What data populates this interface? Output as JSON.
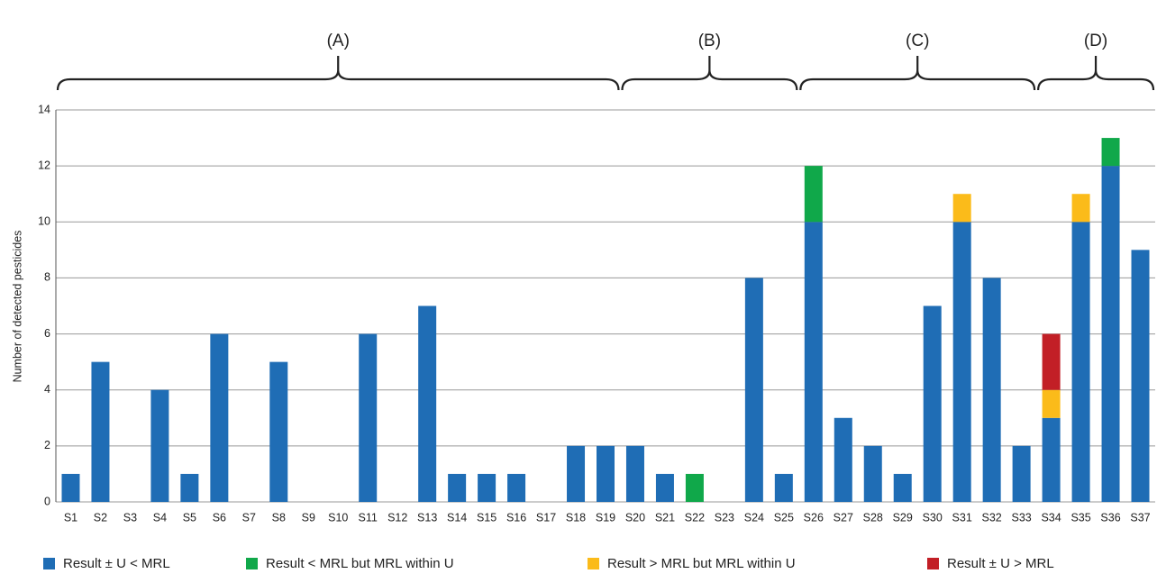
{
  "chart_data": {
    "type": "bar",
    "stacked": true,
    "y_label": "Number of detected pesticides",
    "groups": [
      "(A)",
      "(B)",
      "(C)",
      "(D)"
    ],
    "categories": [
      "S1",
      "S2",
      "S3",
      "S4",
      "S5",
      "S6",
      "S7",
      "S8",
      "S9",
      "S10",
      "S11",
      "S12",
      "S13",
      "S14",
      "S15",
      "S16",
      "S17",
      "S18",
      "S19",
      "S20",
      "S21",
      "S22",
      "S23",
      "S24",
      "S25",
      "S26",
      "S27",
      "S28",
      "S29",
      "S30",
      "S31",
      "S32",
      "S33",
      "S34",
      "S35",
      "S36",
      "S37"
    ],
    "series": [
      {
        "name": "Result ± U < MRL",
        "color": "#1f6db5",
        "values": [
          1,
          5,
          0,
          4,
          1,
          6,
          0,
          5,
          0,
          0,
          6,
          0,
          7,
          1,
          1,
          1,
          0,
          2,
          2,
          2,
          1,
          0,
          0,
          8,
          1,
          10,
          3,
          2,
          1,
          7,
          10,
          8,
          2,
          3,
          10,
          12,
          9
        ]
      },
      {
        "name": "Result < MRL but MRL within U",
        "color": "#10a84a",
        "values": [
          0,
          0,
          0,
          0,
          0,
          0,
          0,
          0,
          0,
          0,
          0,
          0,
          0,
          0,
          0,
          0,
          0,
          0,
          0,
          0,
          0,
          1,
          0,
          0,
          0,
          2,
          0,
          0,
          0,
          0,
          0,
          0,
          0,
          0,
          0,
          1,
          0
        ]
      },
      {
        "name": "Result > MRL but MRL within U",
        "color": "#fbbb1a",
        "values": [
          0,
          0,
          0,
          0,
          0,
          0,
          0,
          0,
          0,
          0,
          0,
          0,
          0,
          0,
          0,
          0,
          0,
          0,
          0,
          0,
          0,
          0,
          0,
          0,
          0,
          0,
          0,
          0,
          0,
          0,
          1,
          0,
          0,
          1,
          1,
          0,
          0
        ]
      },
      {
        "name": "Result ± U > MRL",
        "color": "#c21f26",
        "values": [
          0,
          0,
          0,
          0,
          0,
          0,
          0,
          0,
          0,
          0,
          0,
          0,
          0,
          0,
          0,
          0,
          0,
          0,
          0,
          0,
          0,
          0,
          0,
          0,
          0,
          0,
          0,
          0,
          0,
          0,
          0,
          0,
          0,
          2,
          0,
          0,
          0
        ]
      }
    ],
    "ylim": [
      0,
      14
    ],
    "yticks": [
      0,
      2,
      4,
      6,
      8,
      10,
      12,
      14
    ],
    "grid": true
  }
}
